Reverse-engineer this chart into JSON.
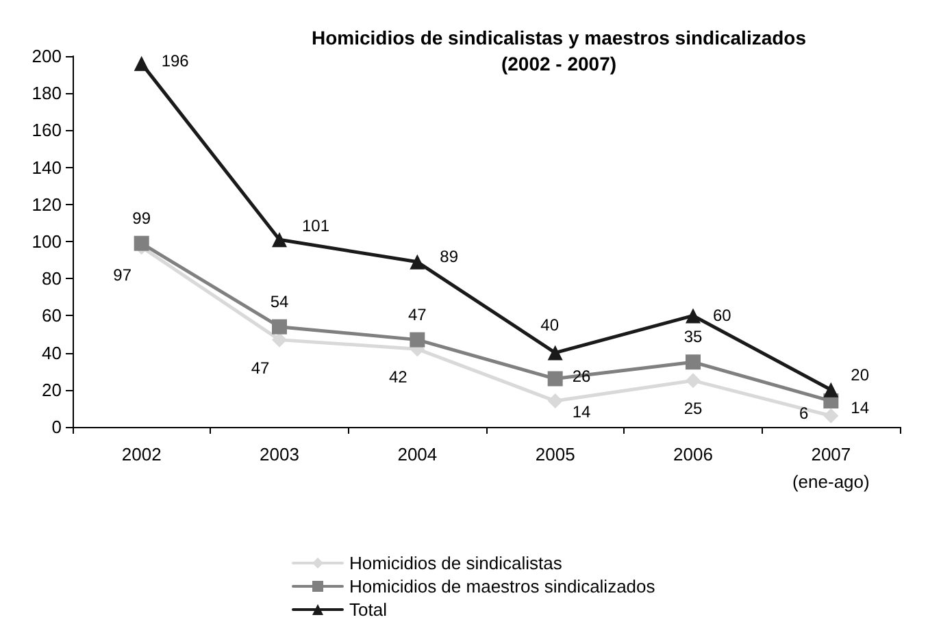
{
  "chart_data": {
    "type": "line",
    "title": "Homicidios de sindicalistas y maestros sindicalizados\n(2002 - 2007)",
    "categories": [
      "2002",
      "2003",
      "2004",
      "2005",
      "2006",
      "2007\n(ene-ago)"
    ],
    "series": [
      {
        "name": "Homicidios de sindicalistas",
        "color": "#d9d9d9",
        "marker": "diamond",
        "values": [
          97,
          47,
          42,
          14,
          25,
          6
        ]
      },
      {
        "name": "Homicidios de maestros sindicalizados",
        "color": "#808080",
        "marker": "square",
        "values": [
          99,
          54,
          47,
          26,
          35,
          14
        ]
      },
      {
        "name": "Total",
        "color": "#1a1a1a",
        "marker": "triangle",
        "values": [
          196,
          101,
          89,
          40,
          60,
          20
        ]
      }
    ],
    "ylim": [
      0,
      200
    ],
    "yticks": [
      0,
      20,
      40,
      60,
      80,
      100,
      120,
      140,
      160,
      180,
      200
    ],
    "grid": false,
    "legend": "bottom",
    "data_labels": true,
    "line_style": "solid"
  }
}
